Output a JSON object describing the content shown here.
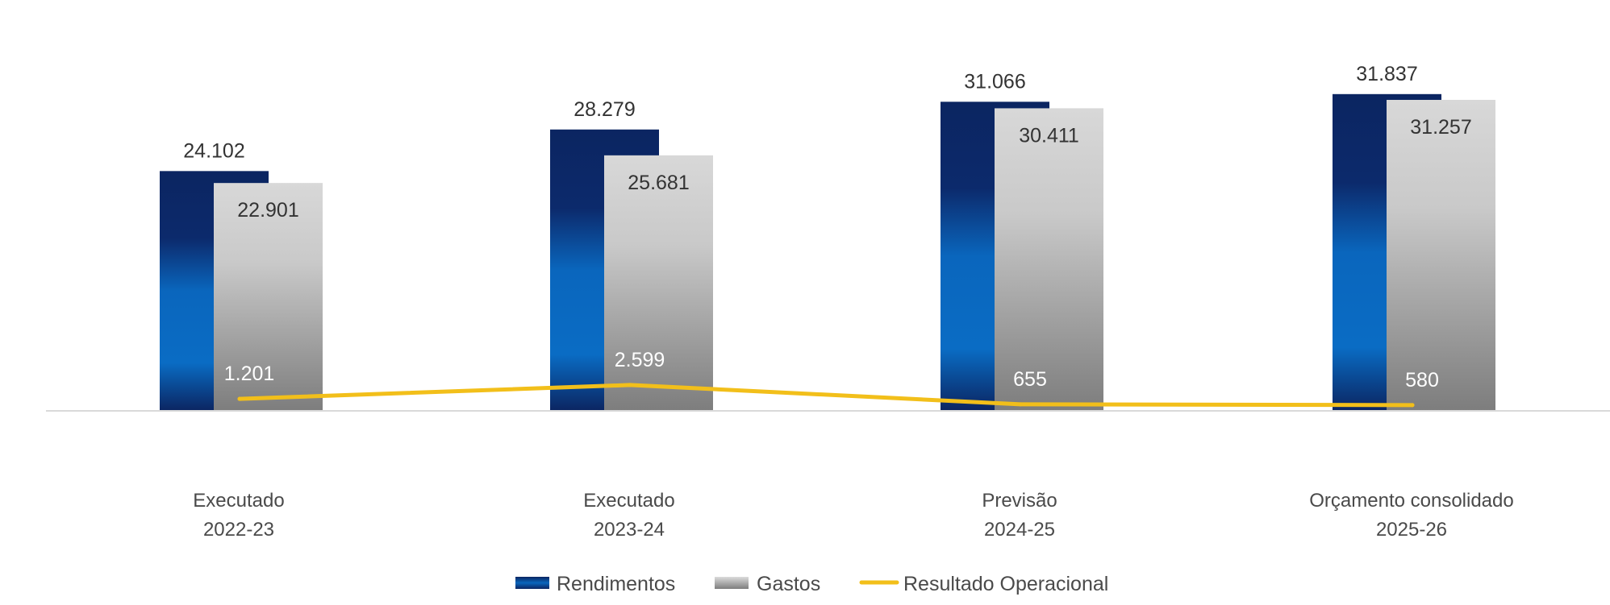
{
  "chart_data": {
    "type": "bar",
    "categories": [
      [
        "Executado",
        "2022-23"
      ],
      [
        "Executado",
        "2023-24"
      ],
      [
        "Previsão",
        "2024-25"
      ],
      [
        "Orçamento consolidado",
        "2025-26"
      ]
    ],
    "series": [
      {
        "name": "Rendimentos",
        "kind": "bar",
        "values": [
          24102,
          28279,
          31066,
          31837
        ],
        "labels": [
          "24.102",
          "28.279",
          "31.066",
          "31.837"
        ],
        "color": "#0a2a6e"
      },
      {
        "name": "Gastos",
        "kind": "bar",
        "values": [
          22901,
          25681,
          30411,
          31257
        ],
        "labels": [
          "22.901",
          "25.681",
          "30.411",
          "31.257"
        ],
        "color": "#9a9a9a"
      },
      {
        "name": "Resultado Operacional",
        "kind": "line",
        "values": [
          1201,
          2599,
          655,
          580
        ],
        "labels": [
          "1.201",
          "2.599",
          "655",
          "580"
        ],
        "color": "#f2bf1a"
      }
    ],
    "ylim": [
      0,
      32000
    ],
    "grid": false,
    "legend": "bottom-center"
  }
}
